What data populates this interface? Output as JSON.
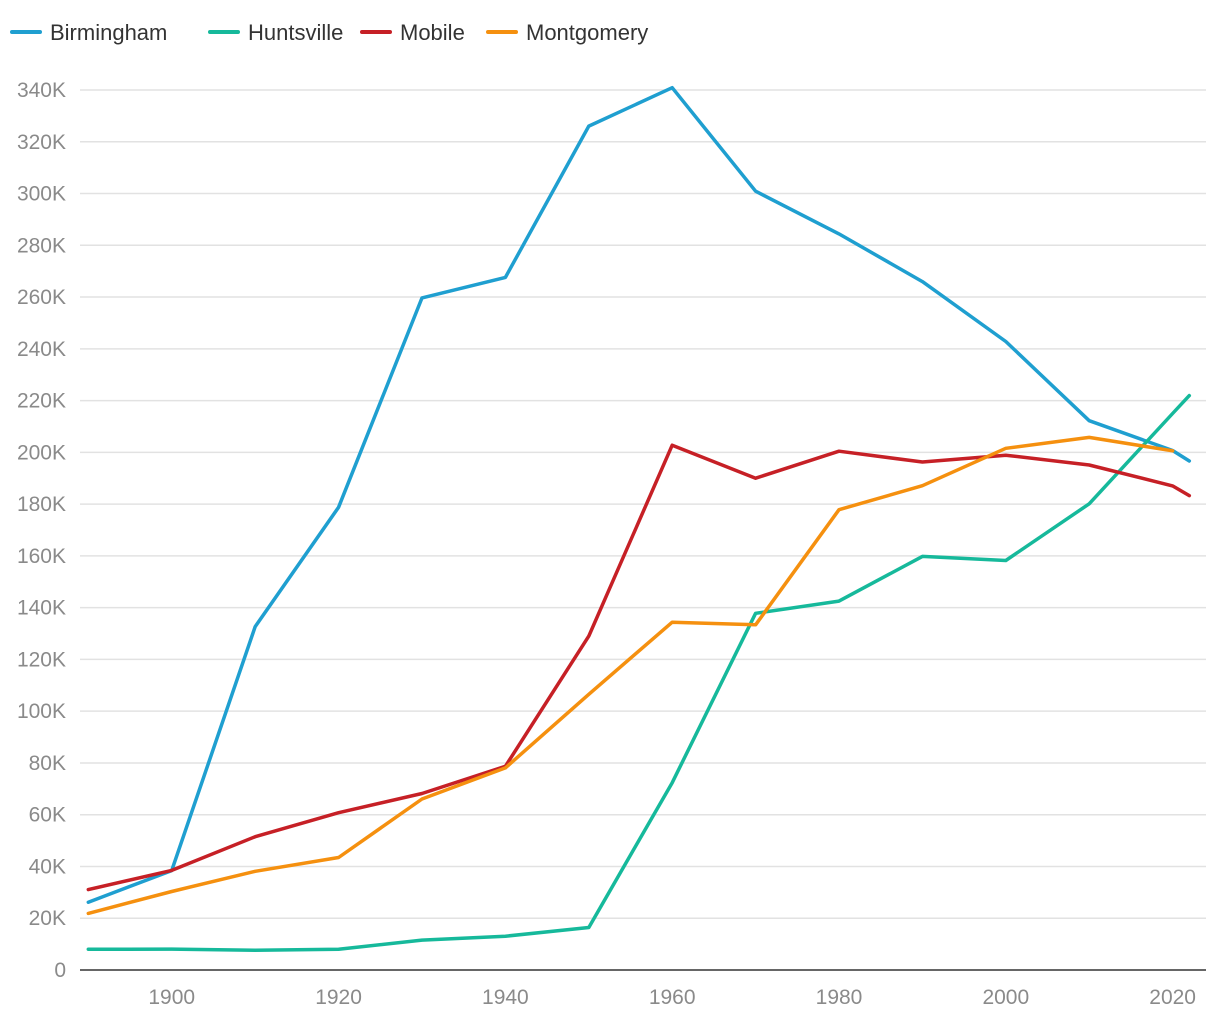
{
  "chart_data": {
    "type": "line",
    "title": "",
    "xlabel": "",
    "ylabel": "",
    "xlim": [
      1889,
      2024
    ],
    "ylim": [
      0,
      340000
    ],
    "x_ticks": [
      1900,
      1920,
      1940,
      1960,
      1980,
      2000,
      2020
    ],
    "y_ticks": [
      0,
      20000,
      40000,
      60000,
      80000,
      100000,
      120000,
      140000,
      160000,
      180000,
      200000,
      220000,
      240000,
      260000,
      280000,
      300000,
      320000,
      340000
    ],
    "y_tick_labels": [
      "0",
      "20K",
      "40K",
      "60K",
      "80K",
      "100K",
      "120K",
      "140K",
      "160K",
      "180K",
      "200K",
      "220K",
      "240K",
      "260K",
      "280K",
      "300K",
      "320K",
      "340K"
    ],
    "grid": true,
    "legend_position": "top-left",
    "series": [
      {
        "name": "Birmingham",
        "color": "#1f9fd0",
        "points": [
          [
            1890,
            26178
          ],
          [
            1900,
            38415
          ],
          [
            1910,
            132685
          ],
          [
            1920,
            178806
          ],
          [
            1930,
            259678
          ],
          [
            1940,
            267583
          ],
          [
            1950,
            326037
          ],
          [
            1960,
            340887
          ],
          [
            1970,
            300910
          ],
          [
            1980,
            284413
          ],
          [
            1990,
            265968
          ],
          [
            2000,
            242820
          ],
          [
            2010,
            212237
          ],
          [
            2020,
            200733
          ],
          [
            2022,
            196644
          ]
        ]
      },
      {
        "name": "Huntsville",
        "color": "#16b99b",
        "points": [
          [
            1890,
            7995
          ],
          [
            1900,
            8068
          ],
          [
            1910,
            7611
          ],
          [
            1920,
            8018
          ],
          [
            1930,
            11554
          ],
          [
            1940,
            13050
          ],
          [
            1950,
            16437
          ],
          [
            1960,
            72365
          ],
          [
            1970,
            137802
          ],
          [
            1980,
            142513
          ],
          [
            1990,
            159789
          ],
          [
            2000,
            158216
          ],
          [
            2010,
            180105
          ],
          [
            2020,
            215006
          ],
          [
            2022,
            221933
          ]
        ]
      },
      {
        "name": "Mobile",
        "color": "#c62026",
        "points": [
          [
            1890,
            31076
          ],
          [
            1900,
            38469
          ],
          [
            1910,
            51521
          ],
          [
            1920,
            60777
          ],
          [
            1930,
            68202
          ],
          [
            1940,
            78720
          ],
          [
            1950,
            129009
          ],
          [
            1960,
            202779
          ],
          [
            1970,
            190026
          ],
          [
            1980,
            200452
          ],
          [
            1990,
            196278
          ],
          [
            2000,
            198915
          ],
          [
            2010,
            195111
          ],
          [
            2020,
            187041
          ],
          [
            2022,
            183289
          ]
        ]
      },
      {
        "name": "Montgomery",
        "color": "#f5900f",
        "points": [
          [
            1890,
            21883
          ],
          [
            1900,
            30346
          ],
          [
            1910,
            38136
          ],
          [
            1920,
            43464
          ],
          [
            1930,
            66079
          ],
          [
            1940,
            78084
          ],
          [
            1950,
            106525
          ],
          [
            1960,
            134393
          ],
          [
            1970,
            133386
          ],
          [
            1980,
            177857
          ],
          [
            1990,
            187106
          ],
          [
            2000,
            201568
          ],
          [
            2010,
            205764
          ],
          [
            2020,
            200603
          ]
        ]
      }
    ]
  }
}
